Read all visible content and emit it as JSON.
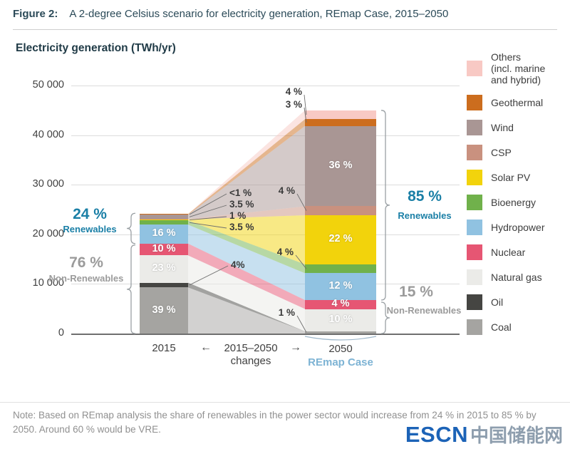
{
  "figure": {
    "label": "Figure 2:",
    "title": "A 2-degree Celsius scenario for electricity generation, REmap Case, 2015–2050"
  },
  "chart_data": {
    "type": "stacked-bar-alluvial",
    "title": "Electricity generation (TWh/yr)",
    "unit": "TWh/yr",
    "ymax": 50000,
    "ylim": [
      0,
      50000
    ],
    "grid": "horizontal",
    "legend_position": "right",
    "y_ticks": [
      "0",
      "10 000",
      "20 000",
      "30 000",
      "40 000",
      "50 000"
    ],
    "categories": [
      "2015",
      "2050"
    ],
    "totals_twh": [
      24100,
      45000
    ],
    "series": [
      {
        "name": "Coal",
        "color": "#a5a4a1",
        "values": [
          39,
          1
        ],
        "labels": [
          "39 %",
          "1 %"
        ],
        "label_pos": [
          "inside",
          "out-left"
        ]
      },
      {
        "name": "Oil",
        "color": "#454542",
        "values": [
          4,
          0
        ],
        "labels": [
          "4%",
          ""
        ],
        "label_pos": [
          "out-right",
          "none"
        ]
      },
      {
        "name": "Natural gas",
        "color": "#ebebe8",
        "values": [
          23,
          10
        ],
        "labels": [
          "23 %",
          "10 %"
        ],
        "label_pos": [
          "inside",
          "inside"
        ]
      },
      {
        "name": "Nuclear",
        "color": "#e65673",
        "values": [
          10,
          4
        ],
        "labels": [
          "10 %",
          "4 %"
        ],
        "label_pos": [
          "inside",
          "inside"
        ]
      },
      {
        "name": "Hydropower",
        "color": "#90c2e1",
        "values": [
          16,
          12
        ],
        "labels": [
          "16 %",
          "12 %"
        ],
        "label_pos": [
          "inside",
          "inside"
        ]
      },
      {
        "name": "Bioenergy",
        "color": "#70b14b",
        "values": [
          3.5,
          4
        ],
        "labels": [
          "3.5 %",
          "4 %"
        ],
        "label_pos": [
          "out-right",
          "out-left"
        ]
      },
      {
        "name": "Solar PV",
        "color": "#f2d30c",
        "values": [
          1,
          22
        ],
        "labels": [
          "1 %",
          "22 %"
        ],
        "label_pos": [
          "out-right",
          "inside"
        ]
      },
      {
        "name": "CSP",
        "color": "#c9917f",
        "values": [
          0.3,
          4
        ],
        "labels": [
          "",
          "4 %"
        ],
        "label_pos": [
          "none",
          "out-left"
        ]
      },
      {
        "name": "Wind",
        "color": "#a99694",
        "values": [
          3.5,
          36
        ],
        "labels": [
          "3.5 %",
          "36 %"
        ],
        "label_pos": [
          "out-right",
          "inside"
        ]
      },
      {
        "name": "Geothermal",
        "color": "#cc6d1e",
        "values": [
          0.7,
          3
        ],
        "labels": [
          "<1 %",
          "3 %"
        ],
        "label_pos": [
          "out-right",
          "out-left"
        ]
      },
      {
        "name": "Others (incl. marine and hybrid)",
        "legend_label": "Others\n(incl. marine\nand hybrid)",
        "color": "#f8c9c4",
        "values": [
          0,
          4
        ],
        "labels": [
          "",
          "4 %"
        ],
        "label_pos": [
          "none",
          "out-left"
        ]
      }
    ],
    "annotations": {
      "renewables_2015": {
        "pct": "24 %",
        "label": "Renewables"
      },
      "nonrenewables_2015": {
        "pct": "76 %",
        "label": "Non-Renewables"
      },
      "renewables_2050": {
        "pct": "85 %",
        "label": "Renewables"
      },
      "nonrenewables_2050": {
        "pct": "15 %",
        "label": "Non-Renewables"
      }
    },
    "x_axis": {
      "left_label": "2015",
      "left_arrow": "←",
      "middle_label": "2015–2050",
      "middle_sublabel": "changes",
      "right_arrow": "→",
      "right_label": "2050",
      "right_sublabel": "REmap Case"
    },
    "colors": {
      "accent_teal": "#1a7fa6",
      "gray": "#9b9b9b",
      "remap_blue": "#7db3d4"
    }
  },
  "note": "Note: Based on REmap analysis the share of renewables in the power sector would increase from 24 % in 2015 to 85 % by 2050. Around 60 % would be VRE.",
  "logo": {
    "en": "ESCN",
    "cn": "中国储能网"
  }
}
